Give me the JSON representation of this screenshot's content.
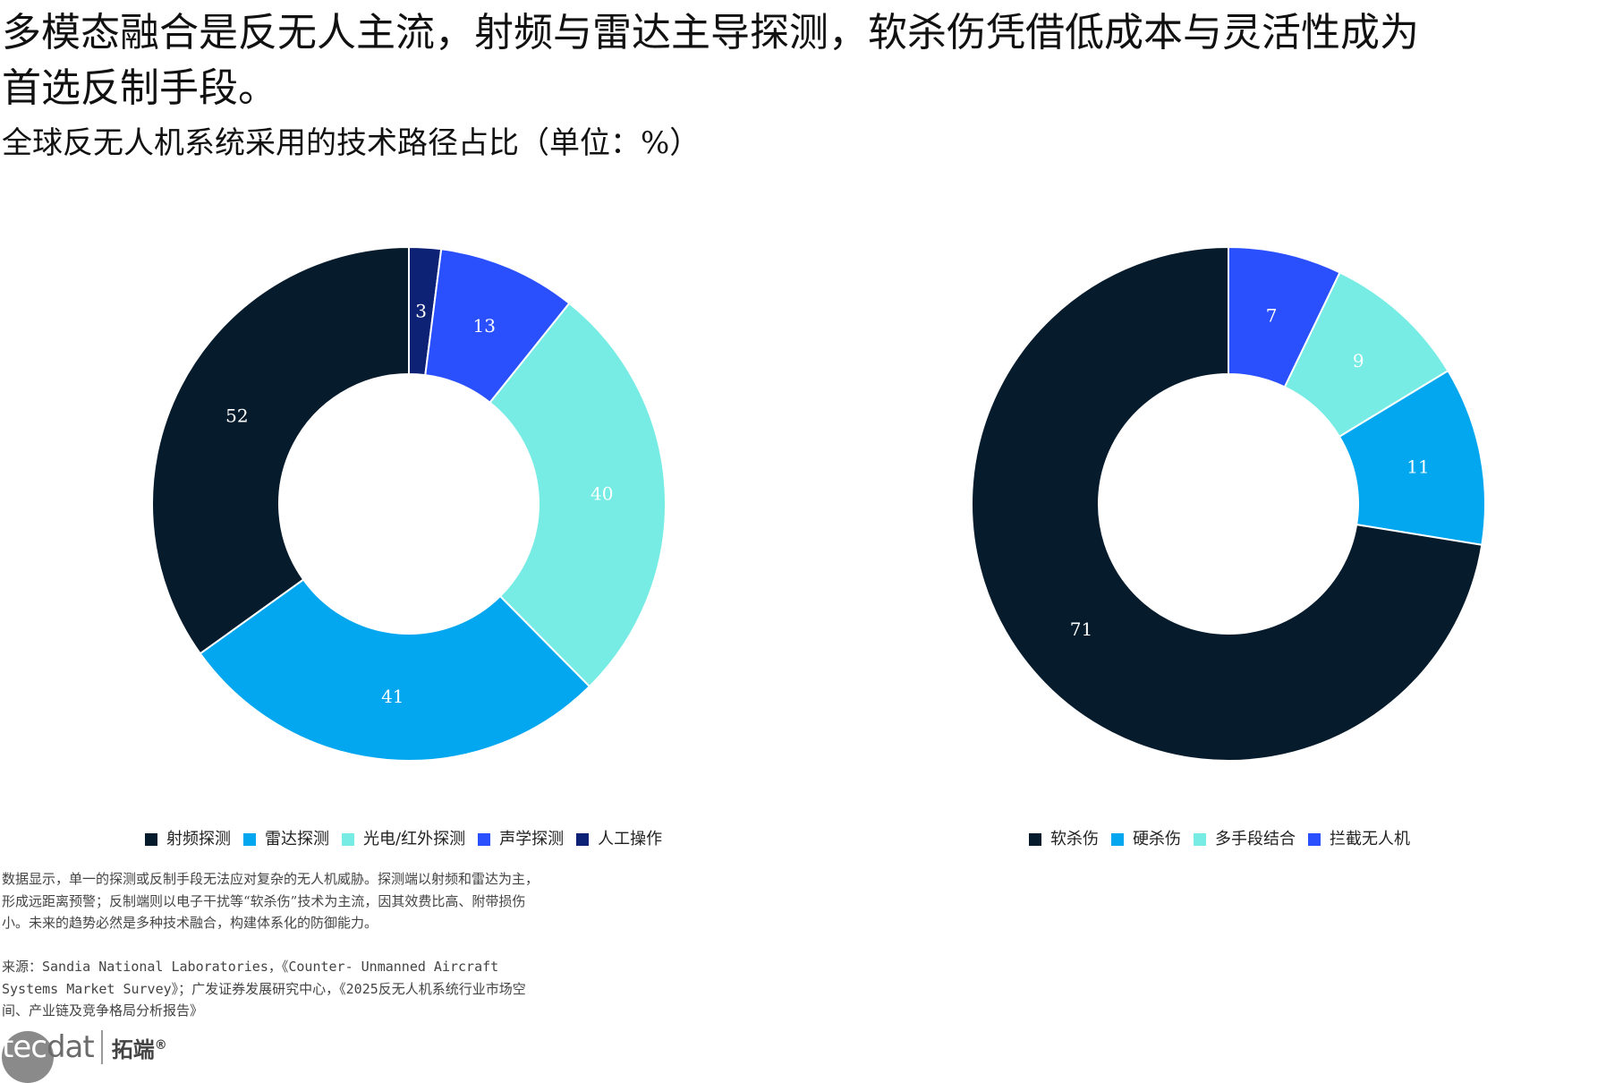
{
  "headline": "多模态融合是反无人主流，射频与雷达主导探测，软杀伤凭借低成本与灵活性成为首选反制手段。",
  "subtitle": "全球反无人机系统采用的技术路径占比（单位：%）",
  "chart_data": [
    {
      "type": "pie",
      "donut": true,
      "categories": [
        "人工操作",
        "声学探测",
        "光电/红外探测",
        "雷达探测",
        "射频探测"
      ],
      "values": [
        3,
        13,
        40,
        41,
        52
      ],
      "colors": [
        "#0e2275",
        "#2a4ffd",
        "#76ece4",
        "#03a7f0",
        "#061b2b"
      ],
      "legend": [
        "射频探测",
        "雷达探测",
        "光电/红外探测",
        "声学探测",
        "人工操作"
      ],
      "legend_position": "bottom"
    },
    {
      "type": "pie",
      "donut": true,
      "categories": [
        "拦截无人机",
        "多手段结合",
        "硬杀伤",
        "软杀伤"
      ],
      "values": [
        7,
        9,
        11,
        71
      ],
      "colors": [
        "#2a4ffd",
        "#76ece4",
        "#03a7f0",
        "#061b2b"
      ],
      "legend": [
        "软杀伤",
        "硬杀伤",
        "多手段结合",
        "拦截无人机"
      ],
      "legend_position": "bottom"
    }
  ],
  "legend_colors": {
    "射频探测": "#061b2b",
    "雷达探测": "#03a7f0",
    "光电/红外探测": "#76ece4",
    "声学探测": "#2a4ffd",
    "人工操作": "#0e2275",
    "软杀伤": "#061b2b",
    "硬杀伤": "#03a7f0",
    "多手段结合": "#76ece4",
    "拦截无人机": "#2a4ffd"
  },
  "note": "数据显示，单一的探测或反制手段无法应对复杂的无人机威胁。探测端以射频和雷达为主，形成远距离预警；反制端则以电子干扰等“软杀伤”技术为主流，因其效费比高、附带损伤小。未来的趋势必然是多种技术融合，构建体系化的防御能力。",
  "source": "来源：Sandia National Laboratories，《Counter- Unmanned Aircraft Systems Market Survey》；广发证券发展研究中心，《2025反无人机系统行业市场空间、产业链及竞争格局分析报告》",
  "logo": {
    "brand": "tecdat",
    "brand_cn": "拓端",
    "mark": "®"
  }
}
